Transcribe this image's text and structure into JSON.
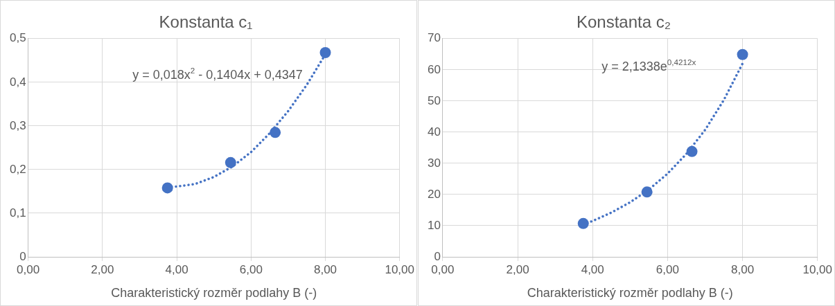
{
  "chart_data": [
    {
      "type": "scatter",
      "title": "Konstanta c₁",
      "xlabel": "Charakteristický rozměr podlahy B (-)",
      "series": [
        {
          "type": "scatter",
          "color": "#4472c4",
          "marker": "circle",
          "x": [
            3.75,
            5.45,
            6.65,
            8.0
          ],
          "values": [
            0.158,
            0.216,
            0.285,
            0.468
          ]
        },
        {
          "type": "line",
          "color": "#4472c4",
          "marker": "none",
          "line_style": "dotted",
          "x": [
            3.75,
            4,
            4.5,
            5,
            5.5,
            6,
            6.5,
            7,
            7.5,
            8
          ],
          "values": [
            0.161,
            0.161,
            0.167,
            0.183,
            0.207,
            0.24,
            0.283,
            0.334,
            0.394,
            0.464
          ]
        }
      ],
      "xlim": [
        0,
        10
      ],
      "xticks": [
        {
          "value": 0,
          "label": "0,00"
        },
        {
          "value": 2,
          "label": "2,00"
        },
        {
          "value": 4,
          "label": "4,00"
        },
        {
          "value": 6,
          "label": "6,00"
        },
        {
          "value": 8,
          "label": "8,00"
        },
        {
          "value": 10,
          "label": "10,00"
        }
      ],
      "ylim": [
        0,
        0.5
      ],
      "yticks": [
        0,
        {
          "value": 0.1,
          "label": "0,1"
        },
        {
          "value": 0.2,
          "label": "0,2"
        },
        {
          "value": 0.3,
          "label": "0,3"
        },
        {
          "value": 0.4,
          "label": "0,4"
        },
        {
          "value": 0.5,
          "label": "0,5"
        }
      ],
      "grid": true,
      "legend": false,
      "annotations": [
        "y = 0,018x$^{2}$ - 0,1404x + 0,4347"
      ]
    },
    {
      "type": "scatter",
      "title": "Konstanta c₂",
      "xlabel": "Charakteristický rozměr podlahy B (-)",
      "series": [
        {
          "type": "scatter",
          "color": "#4472c4",
          "marker": "circle",
          "x": [
            3.75,
            5.45,
            6.65,
            8.0
          ],
          "values": [
            10.7,
            20.8,
            33.8,
            64.9
          ]
        },
        {
          "type": "line",
          "color": "#4472c4",
          "marker": "none",
          "line_style": "dotted",
          "x": [
            3.75,
            4,
            4.5,
            5,
            5.5,
            6,
            6.5,
            7,
            7.5,
            8
          ],
          "values": [
            10.4,
            11.5,
            14.2,
            17.5,
            21.6,
            26.7,
            33.0,
            40.7,
            50.3,
            62.0
          ]
        }
      ],
      "xlim": [
        0,
        10
      ],
      "xticks": [
        {
          "value": 0,
          "label": "0,00"
        },
        {
          "value": 2,
          "label": "2,00"
        },
        {
          "value": 4,
          "label": "4,00"
        },
        {
          "value": 6,
          "label": "6,00"
        },
        {
          "value": 8,
          "label": "8,00"
        },
        {
          "value": 10,
          "label": "10,00"
        }
      ],
      "ylim": [
        0,
        70
      ],
      "yticks": [
        0,
        10,
        20,
        30,
        40,
        50,
        60,
        70
      ],
      "grid": true,
      "legend": false,
      "annotations": [
        "y = 2,1338e$^{0,4212x}$"
      ]
    }
  ]
}
